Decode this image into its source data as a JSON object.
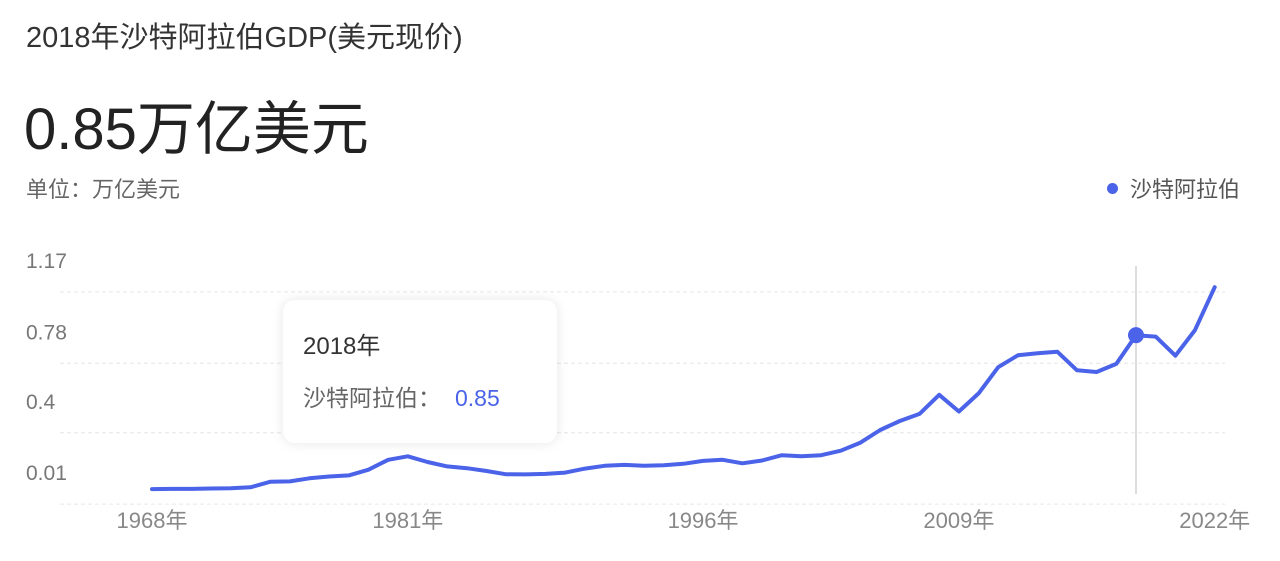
{
  "header": {
    "title": "2018年沙特阿拉伯GDP(美元现价)",
    "value": "0.85万亿美元",
    "unit": "单位：万亿美元"
  },
  "legend": {
    "label": "沙特阿拉伯",
    "color": "#4a63e8"
  },
  "tooltip": {
    "year": "2018年",
    "series": "沙特阿拉伯：",
    "value": "0.85"
  },
  "chart_data": {
    "type": "line",
    "series": [
      {
        "name": "沙特阿拉伯",
        "color": "#4a63e8",
        "x": [
          1968,
          1969,
          1970,
          1971,
          1972,
          1973,
          1974,
          1975,
          1976,
          1977,
          1978,
          1979,
          1980,
          1981,
          1982,
          1983,
          1984,
          1985,
          1986,
          1987,
          1988,
          1989,
          1990,
          1991,
          1992,
          1993,
          1994,
          1995,
          1996,
          1997,
          1998,
          1999,
          2000,
          2001,
          2002,
          2003,
          2004,
          2005,
          2006,
          2007,
          2008,
          2009,
          2010,
          2011,
          2012,
          2013,
          2014,
          2015,
          2016,
          2017,
          2018,
          2019,
          2020,
          2021,
          2022
        ],
        "values": [
          0.005,
          0.006,
          0.006,
          0.008,
          0.01,
          0.015,
          0.045,
          0.047,
          0.064,
          0.074,
          0.08,
          0.111,
          0.165,
          0.184,
          0.153,
          0.129,
          0.119,
          0.104,
          0.086,
          0.085,
          0.088,
          0.095,
          0.117,
          0.132,
          0.137,
          0.132,
          0.135,
          0.143,
          0.159,
          0.165,
          0.146,
          0.161,
          0.19,
          0.184,
          0.19,
          0.215,
          0.259,
          0.328,
          0.377,
          0.416,
          0.52,
          0.429,
          0.528,
          0.671,
          0.736,
          0.747,
          0.756,
          0.654,
          0.645,
          0.689,
          0.846,
          0.838,
          0.734,
          0.874,
          1.108
        ]
      }
    ],
    "yticks": [
      "1.17",
      "0.78",
      "0.4",
      "0.01"
    ],
    "xticks": [
      "1968年",
      "1981年",
      "1996年",
      "2009年",
      "2022年"
    ],
    "highlight_year": 2018,
    "grid": "horizontal dashed",
    "legend_position": "top-right",
    "ylim": [
      0,
      1.17
    ],
    "xlim": [
      1968,
      2022
    ]
  }
}
